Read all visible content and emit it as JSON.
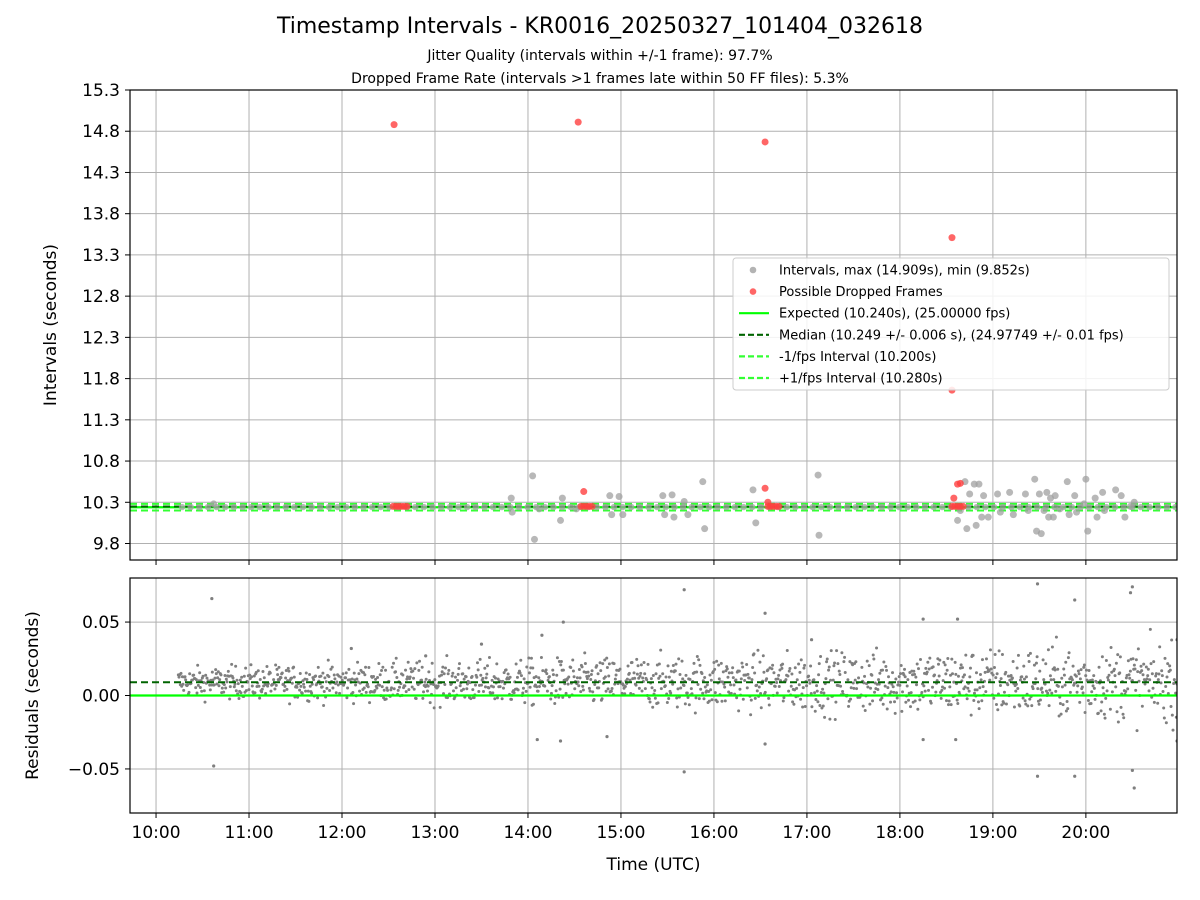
{
  "figure": {
    "title": "Timestamp Intervals - KR0016_20250327_101404_032618",
    "subtitle_1": "Jitter Quality (intervals within +/-1 frame): 97.7%",
    "subtitle_2": "Dropped Frame Rate (intervals >1 frames late within 50 FF files): 5.3%",
    "colors": {
      "interval_points": "#a0a0a0",
      "dropped_points": "#ff4040",
      "expected_line": "#00ff00",
      "median_line": "#006400",
      "fps_bound_lines": "#33ff33",
      "residual_points": "#7f7f7f",
      "grid": "#b0b0b0"
    }
  },
  "chart_data": [
    {
      "type": "scatter",
      "panel": "intervals",
      "xlabel": "",
      "ylabel": "Intervals (seconds)",
      "x_unit": "hours (UTC)",
      "xlim": [
        9.72,
        20.98
      ],
      "ylim": [
        9.6,
        15.3
      ],
      "y_ticks": [
        9.8,
        10.3,
        10.8,
        11.3,
        11.8,
        12.3,
        12.8,
        13.3,
        13.8,
        14.3,
        14.8,
        15.3
      ],
      "y_tick_labels": [
        "9.8",
        "10.3",
        "10.8",
        "11.3",
        "11.8",
        "12.3",
        "12.8",
        "13.3",
        "13.8",
        "14.3",
        "14.8",
        "15.3"
      ],
      "grid": true,
      "legend_position": "center-right",
      "legend": [
        {
          "label": "Intervals, max (14.909s), min (9.852s)",
          "kind": "marker",
          "color": "#a0a0a0"
        },
        {
          "label": "Possible Dropped Frames",
          "kind": "marker",
          "color": "#ff4040"
        },
        {
          "label": "Expected (10.240s), (25.00000 fps)",
          "kind": "line",
          "color": "#00ff00",
          "dash": "solid"
        },
        {
          "label": "Median (10.249 +/- 0.006 s), (24.97749 +/- 0.01 fps)",
          "kind": "line",
          "color": "#006400",
          "dash": "dashed"
        },
        {
          "label": "-1/fps Interval (10.200s)",
          "kind": "line",
          "color": "#33ff33",
          "dash": "dashed"
        },
        {
          "label": "+1/fps Interval (10.280s)",
          "kind": "line",
          "color": "#33ff33",
          "dash": "dashed"
        }
      ],
      "reference_lines": [
        {
          "name": "expected",
          "y": 10.24
        },
        {
          "name": "median",
          "y": 10.249
        },
        {
          "name": "minus_fps",
          "y": 10.2
        },
        {
          "name": "plus_fps",
          "y": 10.28
        }
      ],
      "series": [
        {
          "name": "Intervals",
          "points": [
            [
              10.62,
              10.28
            ],
            [
              13.82,
              10.35
            ],
            [
              13.83,
              10.18
            ],
            [
              14.05,
              10.62
            ],
            [
              14.07,
              9.85
            ],
            [
              14.12,
              10.22
            ],
            [
              14.35,
              10.08
            ],
            [
              14.37,
              10.35
            ],
            [
              14.52,
              10.22
            ],
            [
              14.88,
              10.38
            ],
            [
              14.9,
              10.15
            ],
            [
              14.98,
              10.37
            ],
            [
              15.02,
              10.15
            ],
            [
              15.45,
              10.38
            ],
            [
              15.47,
              10.15
            ],
            [
              15.55,
              10.39
            ],
            [
              15.57,
              10.12
            ],
            [
              15.68,
              10.31
            ],
            [
              15.72,
              10.15
            ],
            [
              15.88,
              10.55
            ],
            [
              15.9,
              9.98
            ],
            [
              16.42,
              10.45
            ],
            [
              16.45,
              10.05
            ],
            [
              17.12,
              10.63
            ],
            [
              17.13,
              9.9
            ],
            [
              18.62,
              10.08
            ],
            [
              18.65,
              10.2
            ],
            [
              18.7,
              10.55
            ],
            [
              18.72,
              9.98
            ],
            [
              18.75,
              10.4
            ],
            [
              18.8,
              10.52
            ],
            [
              18.82,
              10.02
            ],
            [
              18.85,
              10.52
            ],
            [
              18.88,
              10.12
            ],
            [
              18.9,
              10.38
            ],
            [
              18.95,
              10.12
            ],
            [
              19.05,
              10.4
            ],
            [
              19.08,
              10.18
            ],
            [
              19.18,
              10.42
            ],
            [
              19.22,
              10.15
            ],
            [
              19.35,
              10.4
            ],
            [
              19.38,
              10.2
            ],
            [
              19.45,
              10.58
            ],
            [
              19.47,
              9.95
            ],
            [
              19.5,
              10.4
            ],
            [
              19.52,
              9.92
            ],
            [
              19.55,
              10.2
            ],
            [
              19.58,
              10.42
            ],
            [
              19.6,
              10.12
            ],
            [
              19.62,
              10.35
            ],
            [
              19.65,
              10.12
            ],
            [
              19.67,
              10.38
            ],
            [
              19.72,
              10.22
            ],
            [
              19.8,
              10.55
            ],
            [
              19.82,
              10.15
            ],
            [
              19.88,
              10.38
            ],
            [
              19.9,
              10.18
            ],
            [
              19.98,
              10.28
            ],
            [
              20.0,
              10.58
            ],
            [
              20.02,
              9.95
            ],
            [
              20.1,
              10.35
            ],
            [
              20.12,
              10.12
            ],
            [
              20.18,
              10.42
            ],
            [
              20.2,
              10.2
            ],
            [
              20.32,
              10.45
            ],
            [
              20.38,
              10.38
            ],
            [
              20.42,
              10.12
            ],
            [
              20.48,
              10.25
            ],
            [
              20.52,
              10.3
            ]
          ]
        },
        {
          "name": "Possible Dropped Frames",
          "points": [
            [
              12.56,
              14.88
            ],
            [
              14.54,
              14.91
            ],
            [
              16.55,
              14.67
            ],
            [
              18.56,
              13.51
            ],
            [
              18.56,
              11.66
            ],
            [
              18.58,
              10.35
            ],
            [
              18.62,
              10.52
            ],
            [
              18.65,
              10.53
            ],
            [
              14.6,
              10.43
            ],
            [
              16.55,
              10.47
            ],
            [
              16.58,
              10.3
            ],
            [
              12.55,
              10.25
            ],
            [
              12.58,
              10.25
            ],
            [
              12.61,
              10.25
            ],
            [
              12.64,
              10.25
            ],
            [
              12.67,
              10.25
            ],
            [
              12.7,
              10.25
            ],
            [
              14.57,
              10.25
            ],
            [
              14.6,
              10.25
            ],
            [
              14.63,
              10.25
            ],
            [
              14.66,
              10.25
            ],
            [
              14.69,
              10.25
            ],
            [
              16.58,
              10.25
            ],
            [
              16.61,
              10.25
            ],
            [
              16.64,
              10.25
            ],
            [
              16.67,
              10.25
            ],
            [
              16.7,
              10.25
            ],
            [
              18.56,
              10.25
            ],
            [
              18.59,
              10.25
            ],
            [
              18.62,
              10.25
            ],
            [
              18.65,
              10.25
            ],
            [
              18.68,
              10.25
            ]
          ]
        }
      ]
    },
    {
      "type": "scatter",
      "panel": "residuals",
      "xlabel": "Time (UTC)",
      "ylabel": "Residuals (seconds)",
      "x_unit": "hours (UTC)",
      "xlim": [
        9.72,
        20.98
      ],
      "ylim": [
        -0.08,
        0.08
      ],
      "x_ticks": [
        10,
        11,
        12,
        13,
        14,
        15,
        16,
        17,
        18,
        19,
        20
      ],
      "x_tick_labels": [
        "10:00",
        "11:00",
        "12:00",
        "13:00",
        "14:00",
        "15:00",
        "16:00",
        "17:00",
        "18:00",
        "19:00",
        "20:00"
      ],
      "y_ticks": [
        -0.05,
        0.0,
        0.05
      ],
      "y_tick_labels": [
        "−0.05",
        "0.00",
        "0.05"
      ],
      "grid": true,
      "reference_lines": [
        {
          "name": "expected",
          "y": 0.0
        },
        {
          "name": "median",
          "y": 0.009
        }
      ],
      "series": [
        {
          "name": "Residuals",
          "band": {
            "x_start": 10.24,
            "x_end": 20.98,
            "count": 1500,
            "center": 0.009,
            "spread_start": 0.005,
            "spread_end": 0.013
          },
          "outliers": [
            [
              10.6,
              0.066
            ],
            [
              10.62,
              -0.048
            ],
            [
              12.1,
              0.032
            ],
            [
              12.9,
              0.027
            ],
            [
              14.15,
              0.041
            ],
            [
              14.38,
              0.05
            ],
            [
              14.1,
              -0.03
            ],
            [
              14.35,
              -0.031
            ],
            [
              14.85,
              -0.028
            ],
            [
              15.68,
              0.072
            ],
            [
              15.68,
              -0.052
            ],
            [
              16.55,
              0.056
            ],
            [
              16.55,
              -0.033
            ],
            [
              18.25,
              0.052
            ],
            [
              18.62,
              0.052
            ],
            [
              18.6,
              -0.03
            ],
            [
              18.25,
              -0.03
            ],
            [
              19.48,
              0.076
            ],
            [
              19.48,
              -0.055
            ],
            [
              19.88,
              0.065
            ],
            [
              19.88,
              -0.055
            ],
            [
              20.5,
              0.074
            ],
            [
              20.48,
              0.07
            ],
            [
              20.5,
              -0.051
            ],
            [
              20.52,
              -0.063
            ],
            [
              20.98,
              0.038
            ],
            [
              20.98,
              -0.031
            ],
            [
              17.05,
              0.038
            ],
            [
              13.5,
              0.035
            ]
          ]
        }
      ]
    }
  ]
}
